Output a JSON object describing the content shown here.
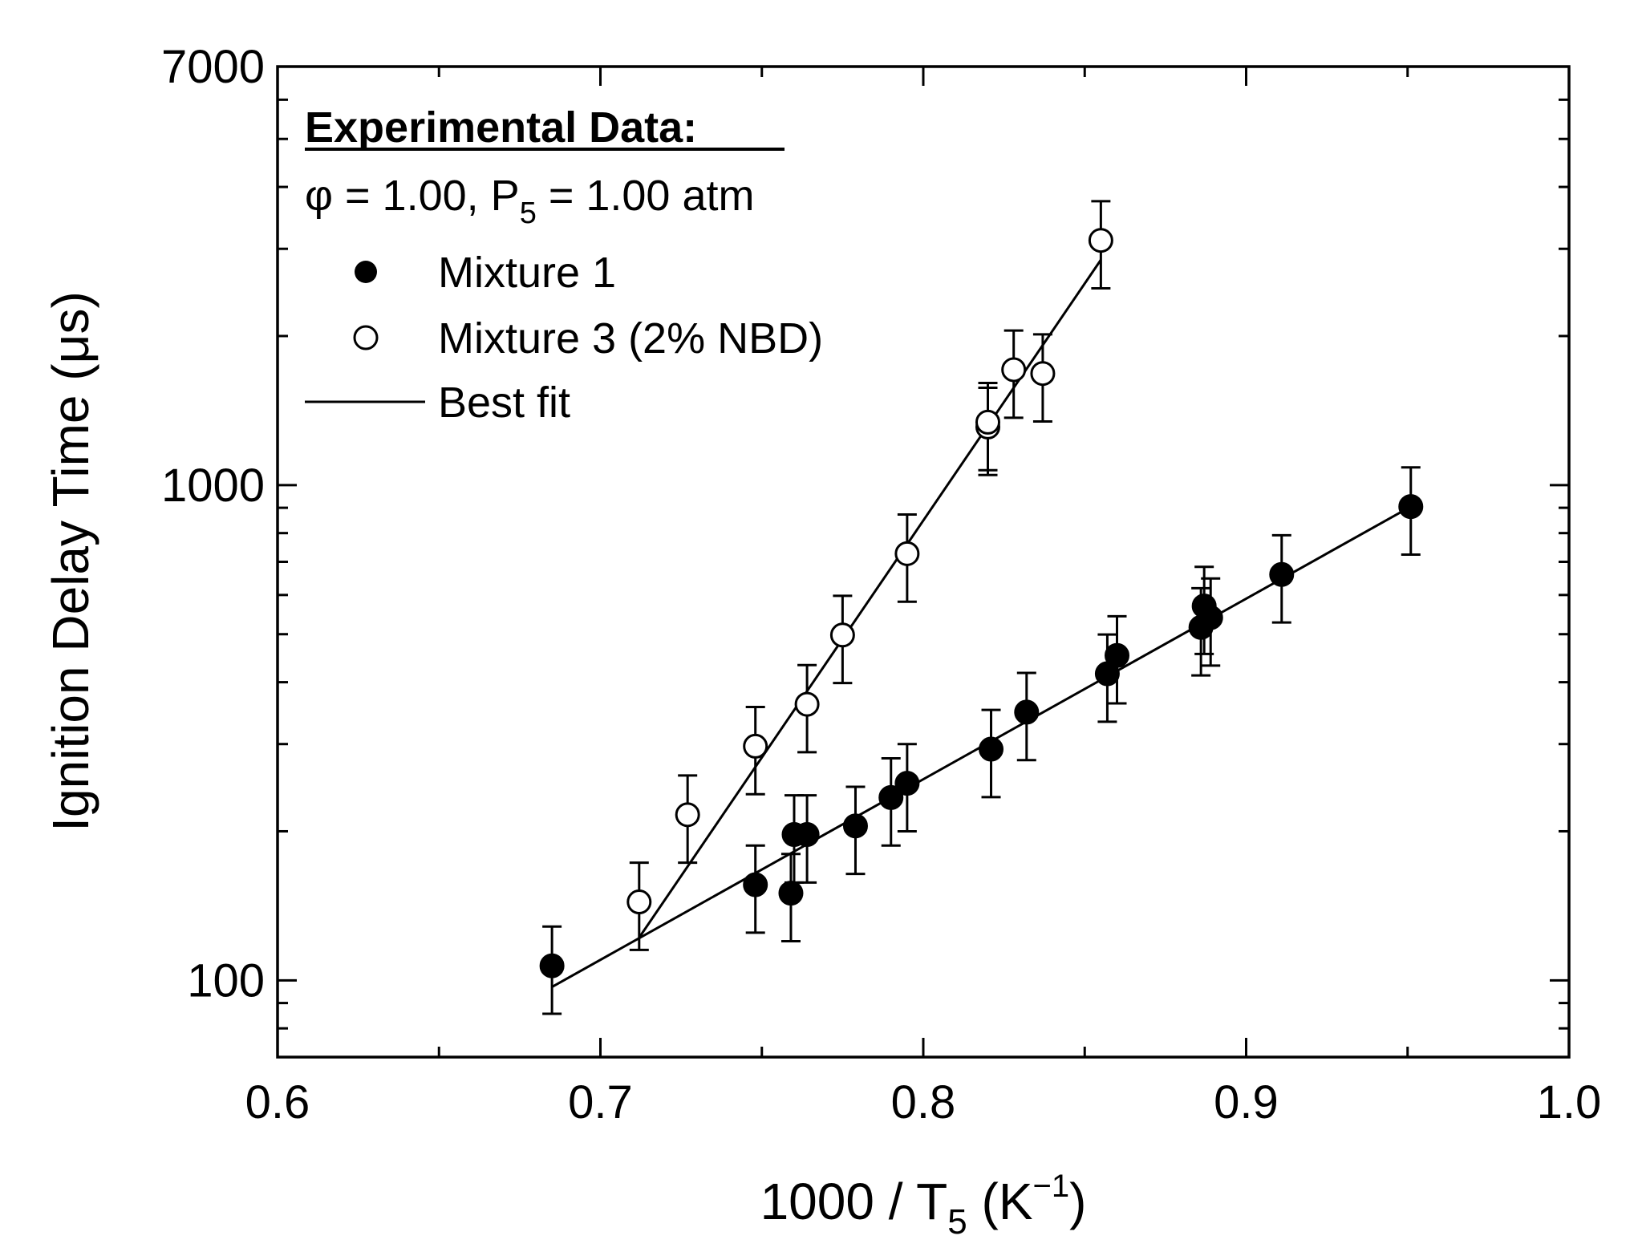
{
  "chart_data": {
    "type": "scatter",
    "xlabel": "1000 / T",
    "xlabel_sub": "5",
    "xlabel_unit_base": " (K",
    "xlabel_unit_sup": "−1",
    "xlabel_unit_close": ")",
    "ylabel": "Ignition Delay Time (μs)",
    "x_range": [
      0.6,
      1.0
    ],
    "y_range": [
      70,
      7000
    ],
    "y_scale": "log",
    "x_ticks": [
      {
        "value": 0.6,
        "label": "0.6"
      },
      {
        "value": 0.7,
        "label": "0.7"
      },
      {
        "value": 0.8,
        "label": "0.8"
      },
      {
        "value": 0.9,
        "label": "0.9"
      },
      {
        "value": 1.0,
        "label": "1.0"
      }
    ],
    "y_ticks": [
      {
        "value": 100,
        "label": "100"
      },
      {
        "value": 1000,
        "label": "1000"
      },
      {
        "value": 7000,
        "label": "7000"
      }
    ],
    "legend": {
      "title": "Experimental Data:",
      "condition_prefix": "φ = 1.00, P",
      "condition_sub": "5",
      "condition_suffix": " = 1.00 atm",
      "placement": "top-left",
      "entries": [
        {
          "label": "Mixture 1",
          "marker": "filled-circle"
        },
        {
          "label": "Mixture 3 (2% NBD)",
          "marker": "open-circle"
        },
        {
          "label": "Best fit",
          "marker": "line"
        }
      ]
    },
    "series": [
      {
        "name": "Mixture 1",
        "marker": "filled-circle",
        "error_fraction": 0.2,
        "points": [
          {
            "x": 0.685,
            "y": 107
          },
          {
            "x": 0.748,
            "y": 156
          },
          {
            "x": 0.759,
            "y": 150
          },
          {
            "x": 0.76,
            "y": 197
          },
          {
            "x": 0.764,
            "y": 197
          },
          {
            "x": 0.779,
            "y": 205
          },
          {
            "x": 0.79,
            "y": 234
          },
          {
            "x": 0.795,
            "y": 250
          },
          {
            "x": 0.821,
            "y": 293
          },
          {
            "x": 0.832,
            "y": 348
          },
          {
            "x": 0.857,
            "y": 416
          },
          {
            "x": 0.86,
            "y": 453
          },
          {
            "x": 0.886,
            "y": 516
          },
          {
            "x": 0.887,
            "y": 570
          },
          {
            "x": 0.889,
            "y": 540
          },
          {
            "x": 0.911,
            "y": 660
          },
          {
            "x": 0.951,
            "y": 905
          }
        ],
        "fit": {
          "x": [
            0.685,
            0.951
          ],
          "y": [
            97,
            905
          ]
        }
      },
      {
        "name": "Mixture 3 (2% NBD)",
        "marker": "open-circle",
        "error_fraction": 0.2,
        "points": [
          {
            "x": 0.712,
            "y": 144
          },
          {
            "x": 0.727,
            "y": 216
          },
          {
            "x": 0.748,
            "y": 297
          },
          {
            "x": 0.764,
            "y": 361
          },
          {
            "x": 0.775,
            "y": 498
          },
          {
            "x": 0.795,
            "y": 727
          },
          {
            "x": 0.82,
            "y": 1310
          },
          {
            "x": 0.82,
            "y": 1340
          },
          {
            "x": 0.828,
            "y": 1710
          },
          {
            "x": 0.837,
            "y": 1680
          },
          {
            "x": 0.855,
            "y": 3120
          }
        ],
        "fit": {
          "x": [
            0.712,
            0.855
          ],
          "y": [
            122,
            2850
          ]
        }
      }
    ]
  }
}
